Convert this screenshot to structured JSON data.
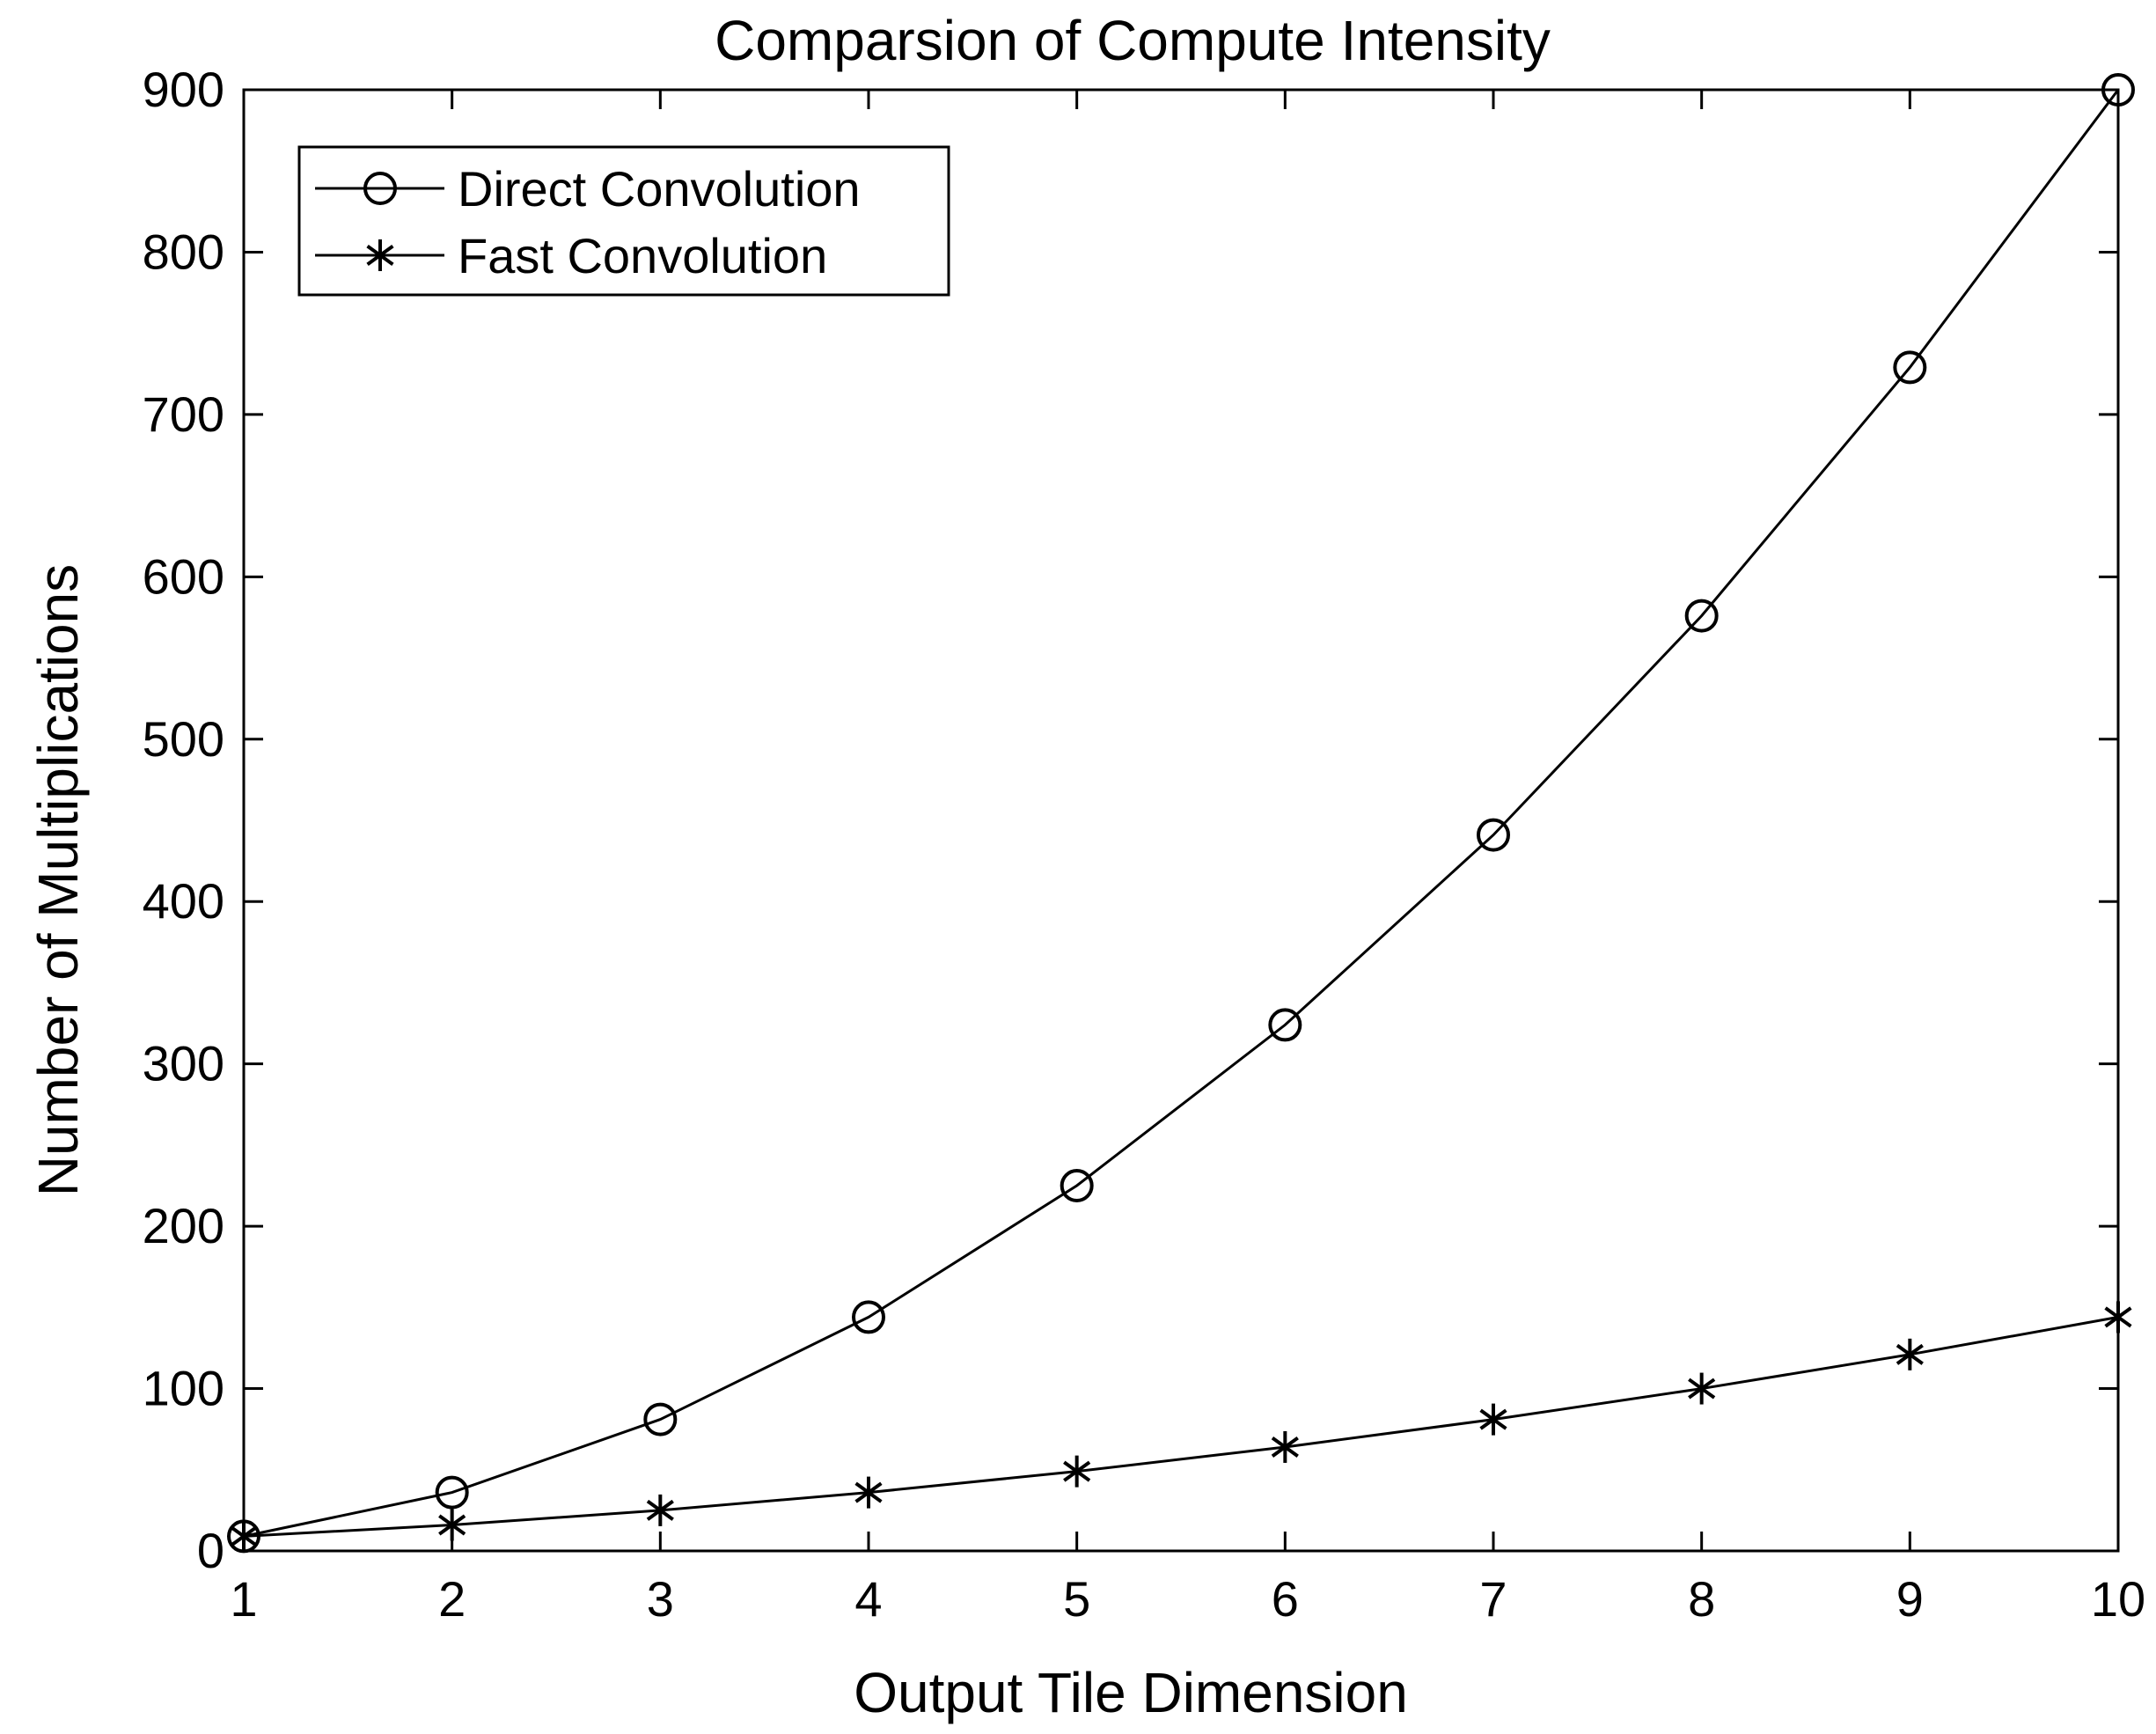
{
  "chart_data": {
    "type": "line",
    "title": "Comparsion of Compute Intensity",
    "xlabel": "Output Tile Dimension",
    "ylabel": "Number of Multiplications",
    "xlim": [
      1,
      10
    ],
    "ylim": [
      0,
      900
    ],
    "xticks": [
      "1",
      "2",
      "3",
      "4",
      "5",
      "6",
      "7",
      "8",
      "9",
      "10"
    ],
    "yticks": [
      "0",
      "100",
      "200",
      "300",
      "400",
      "500",
      "600",
      "700",
      "800",
      "900"
    ],
    "grid": false,
    "legend_position": "top-left",
    "x": [
      1,
      2,
      3,
      4,
      5,
      6,
      7,
      8,
      9,
      10
    ],
    "series": [
      {
        "name": "Direct Convolution",
        "marker": "circle",
        "color": "#000000",
        "values": [
          9,
          36,
          81,
          144,
          225,
          324,
          441,
          576,
          729,
          900
        ]
      },
      {
        "name": "Fast Convolution",
        "marker": "asterisk",
        "color": "#000000",
        "values": [
          9,
          16,
          25,
          36,
          49,
          64,
          81,
          100,
          121,
          144
        ]
      }
    ]
  }
}
